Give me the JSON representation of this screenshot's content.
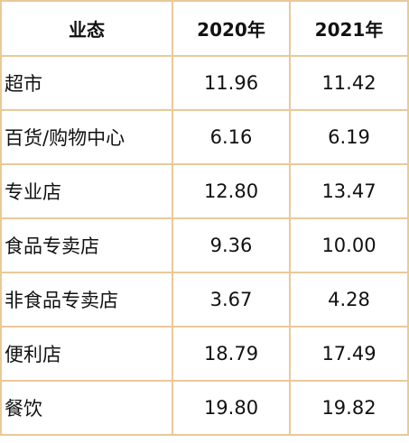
{
  "table": {
    "headers": [
      "业态",
      "2020年",
      "2021年"
    ],
    "rows": [
      {
        "name": "超市",
        "y2020": "11.96",
        "y2021": "11.42"
      },
      {
        "name": "百货/购物中心",
        "y2020": "6.16",
        "y2021": "6.19"
      },
      {
        "name": "专业店",
        "y2020": "12.80",
        "y2021": "13.47"
      },
      {
        "name": "食品专卖店",
        "y2020": "9.36",
        "y2021": "10.00"
      },
      {
        "name": "非食品专卖店",
        "y2020": "3.67",
        "y2021": "4.28"
      },
      {
        "name": "便利店",
        "y2020": "18.79",
        "y2021": "17.49"
      },
      {
        "name": "餐饮",
        "y2020": "19.80",
        "y2021": "19.82"
      }
    ]
  },
  "colors": {
    "border": "#e9c99a",
    "text": "#111111",
    "background": "#ffffff"
  }
}
